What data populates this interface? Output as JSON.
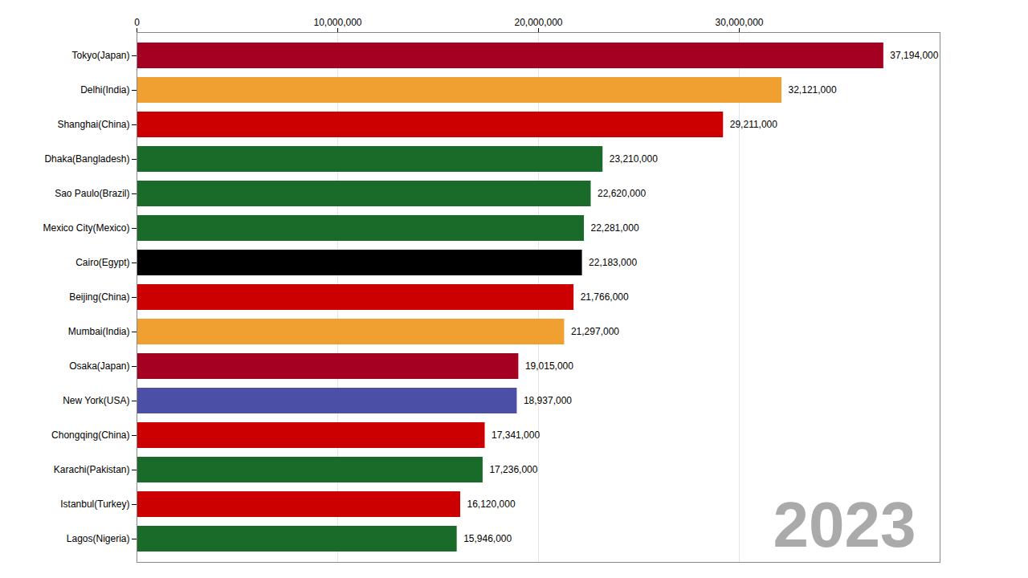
{
  "chart_data": {
    "type": "bar",
    "orientation": "horizontal",
    "categories": [
      "Tokyo(Japan)",
      "Delhi(India)",
      "Shanghai(China)",
      "Dhaka(Bangladesh)",
      "Sao Paulo(Brazil)",
      "Mexico City(Mexico)",
      "Cairo(Egypt)",
      "Beijing(China)",
      "Mumbai(India)",
      "Osaka(Japan)",
      "New York(USA)",
      "Chongqing(China)",
      "Karachi(Pakistan)",
      "Istanbul(Turkey)",
      "Lagos(Nigeria)"
    ],
    "values": [
      37194000,
      32121000,
      29211000,
      23210000,
      22620000,
      22281000,
      22183000,
      21766000,
      21297000,
      19015000,
      18937000,
      17341000,
      17236000,
      16120000,
      15946000
    ],
    "colors": [
      "#A50021",
      "#F0A030",
      "#CC0000",
      "#1A6B2A",
      "#1A6B2A",
      "#1A6B2A",
      "#000000",
      "#CC0000",
      "#F0A030",
      "#A50021",
      "#4B4FA6",
      "#CC0000",
      "#1A6B2A",
      "#CC0000",
      "#1A6B2A"
    ],
    "value_labels": [
      "37,194,000",
      "32,121,000",
      "29,211,000",
      "23,210,000",
      "22,620,000",
      "22,281,000",
      "22,183,000",
      "21,766,000",
      "21,297,000",
      "19,015,000",
      "18,937,000",
      "17,341,000",
      "17,236,000",
      "16,120,000",
      "15,946,000"
    ],
    "data_labels": true,
    "xlim": [
      0,
      40000000
    ],
    "xticks": [
      0,
      {
        "value": 10000000,
        "label": "10,000,000"
      },
      {
        "value": 20000000,
        "label": "20,000,000"
      },
      {
        "value": 30000000,
        "label": "30,000,000"
      }
    ],
    "grid": true,
    "annotations": [
      {
        "text": "2023",
        "color": "#AAAAAA"
      }
    ]
  }
}
